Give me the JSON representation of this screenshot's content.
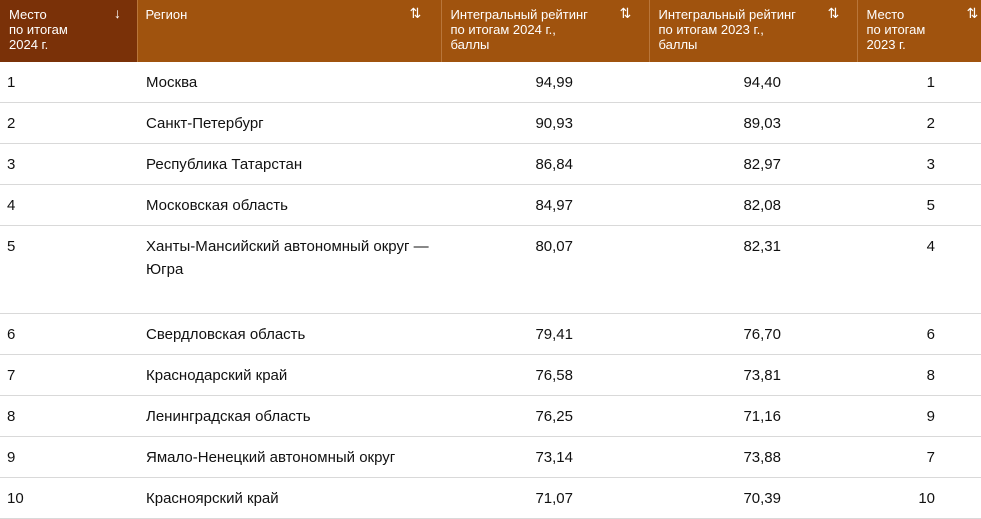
{
  "table": {
    "headers": [
      {
        "label": "Место\nпо итогам\n2024 г.",
        "sort": "↓"
      },
      {
        "label": "Регион",
        "sort": "⇅"
      },
      {
        "label": "Интегральный рейтинг\nпо итогам 2024 г.,\nбаллы",
        "sort": "⇅"
      },
      {
        "label": "Интегральный рейтинг\nпо итогам 2023 г.,\nбаллы",
        "sort": "⇅"
      },
      {
        "label": "Место\nпо итогам\n2023 г.",
        "sort": "⇅"
      }
    ],
    "rows": [
      {
        "place_2024": "1",
        "region": "Москва",
        "rating_2024": "94,99",
        "rating_2023": "94,40",
        "place_2023": "1"
      },
      {
        "place_2024": "2",
        "region": "Санкт-Петербург",
        "rating_2024": "90,93",
        "rating_2023": "89,03",
        "place_2023": "2"
      },
      {
        "place_2024": "3",
        "region": "Республика Татарстан",
        "rating_2024": "86,84",
        "rating_2023": "82,97",
        "place_2023": "3"
      },
      {
        "place_2024": "4",
        "region": "Московская область",
        "rating_2024": "84,97",
        "rating_2023": "82,08",
        "place_2023": "5"
      },
      {
        "place_2024": "5",
        "region": "Ханты-Мансийский автономный округ — Югра",
        "rating_2024": "80,07",
        "rating_2023": "82,31",
        "place_2023": "4"
      },
      {
        "place_2024": "6",
        "region": "Свердловская область",
        "rating_2024": "79,41",
        "rating_2023": "76,70",
        "place_2023": "6"
      },
      {
        "place_2024": "7",
        "region": "Краснодарский край",
        "rating_2024": "76,58",
        "rating_2023": "73,81",
        "place_2023": "8"
      },
      {
        "place_2024": "8",
        "region": "Ленинградская область",
        "rating_2024": "76,25",
        "rating_2023": "71,16",
        "place_2023": "9"
      },
      {
        "place_2024": "9",
        "region": "Ямало-Ненецкий автономный округ",
        "rating_2024": "73,14",
        "rating_2023": "73,88",
        "place_2023": "7"
      },
      {
        "place_2024": "10",
        "region": "Красноярский край",
        "rating_2024": "71,07",
        "rating_2023": "70,39",
        "place_2023": "10"
      }
    ]
  },
  "colors": {
    "header_active": "#7a3108",
    "header": "#a0530e",
    "row_border": "#d9d9d9"
  }
}
